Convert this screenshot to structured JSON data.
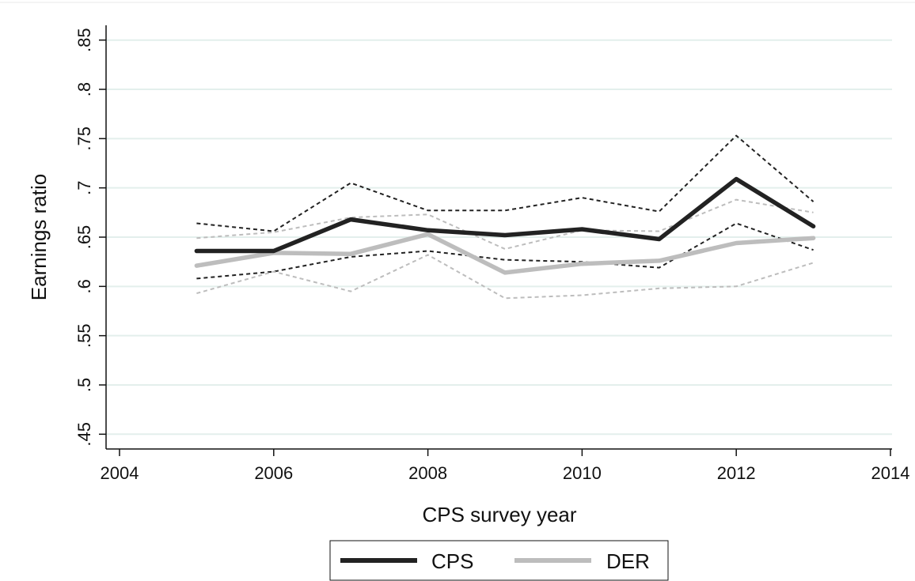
{
  "chart_data": {
    "type": "line",
    "title": "",
    "xlabel": "CPS survey year",
    "ylabel": "Earnings ratio",
    "xlim": [
      2004,
      2014
    ],
    "ylim": [
      0.435,
      0.865
    ],
    "x_ticks": [
      2004,
      2006,
      2008,
      2010,
      2012,
      2014
    ],
    "x_tick_labels": [
      "2004",
      "2006",
      "2008",
      "2010",
      "2012",
      "2014"
    ],
    "y_ticks": [
      0.45,
      0.5,
      0.55,
      0.6,
      0.65,
      0.7,
      0.75,
      0.8,
      0.85
    ],
    "y_tick_labels": [
      ".45",
      ".5",
      ".55",
      ".6",
      ".65",
      ".7",
      ".75",
      ".8",
      ".85"
    ],
    "grid": "horizontal",
    "legend_position": "bottom",
    "x": [
      2005,
      2006,
      2007,
      2008,
      2009,
      2010,
      2011,
      2012,
      2013
    ],
    "series": [
      {
        "name": "CPS",
        "color": "#222222",
        "style": "solid-thick",
        "values": [
          0.636,
          0.636,
          0.668,
          0.657,
          0.652,
          0.658,
          0.648,
          0.709,
          0.661
        ]
      },
      {
        "name": "DER",
        "color": "#bdbdbd",
        "style": "solid-thick",
        "values": [
          0.621,
          0.634,
          0.633,
          0.653,
          0.614,
          0.623,
          0.626,
          0.644,
          0.649
        ]
      },
      {
        "role": "CPS upper bound",
        "color": "#222222",
        "style": "dashed",
        "values": [
          0.664,
          0.656,
          0.705,
          0.677,
          0.677,
          0.69,
          0.676,
          0.753,
          0.686
        ]
      },
      {
        "role": "CPS lower bound",
        "color": "#222222",
        "style": "dashed",
        "values": [
          0.608,
          0.615,
          0.63,
          0.636,
          0.627,
          0.625,
          0.619,
          0.664,
          0.637
        ]
      },
      {
        "role": "DER upper bound",
        "color": "#bdbdbd",
        "style": "dashed",
        "values": [
          0.649,
          0.655,
          0.67,
          0.673,
          0.638,
          0.657,
          0.656,
          0.688,
          0.675
        ]
      },
      {
        "role": "DER lower bound",
        "color": "#bdbdbd",
        "style": "dashed",
        "values": [
          0.593,
          0.615,
          0.595,
          0.632,
          0.588,
          0.591,
          0.598,
          0.6,
          0.624
        ]
      }
    ],
    "legend": [
      {
        "label": "CPS",
        "color": "#222222"
      },
      {
        "label": "DER",
        "color": "#bdbdbd"
      }
    ]
  }
}
